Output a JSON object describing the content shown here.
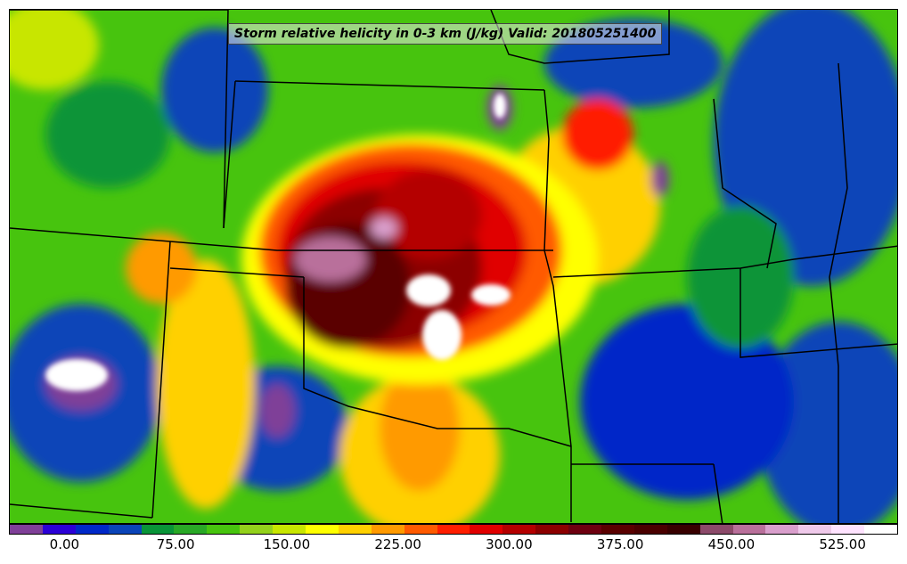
{
  "title": "Storm relative helicity in 0-3 km (J/kg) Valid: 201805251400",
  "colorbar": {
    "colors": [
      "#7f3f98",
      "#2b00d6",
      "#0028c8",
      "#0a44b8",
      "#099438",
      "#29a826",
      "#47c40e",
      "#93d11b",
      "#c8e600",
      "#ffff00",
      "#ffd000",
      "#ff9a00",
      "#ff5a00",
      "#ff1e00",
      "#e00000",
      "#b40000",
      "#8c0000",
      "#6e0010",
      "#5a0000",
      "#4a0000",
      "#380000",
      "#8c4a6a",
      "#b9709b",
      "#d99fcc",
      "#efc9ea",
      "#ffe3ff",
      "#ffffff"
    ],
    "tick_labels": [
      "0.00",
      "75.00",
      "150.00",
      "225.00",
      "300.00",
      "375.00",
      "450.00",
      "525.00"
    ],
    "tick_values": [
      0,
      75,
      150,
      225,
      300,
      375,
      450,
      525
    ],
    "range": [
      -37.5,
      562.5
    ]
  },
  "map": {
    "variable": "storm relative helicity 0-3 km",
    "units": "J/kg",
    "valid_time": "201805251400",
    "palette": {
      "base": "#47c40e",
      "low": "#0028c8",
      "very_low": "#7f3f98",
      "mid": "#ffff00",
      "high": "#ff5a00",
      "very_high": "#6e0010",
      "extreme": "#ffffff"
    }
  }
}
